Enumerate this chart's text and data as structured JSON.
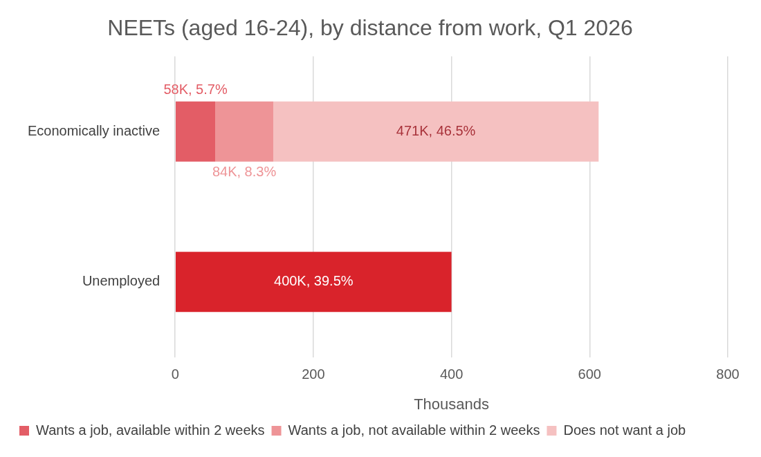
{
  "chart_data": {
    "type": "bar",
    "orientation": "horizontal",
    "stacked": true,
    "title": "NEETs (aged 16-24), by distance from work, Q1 2026",
    "xlabel": "Thousands",
    "categories": [
      "Economically inactive",
      "Unemployed"
    ],
    "series": [
      {
        "color": "#d9232b",
        "values": [
          null,
          400
        ]
      },
      {
        "name": "Wants a job, available within 2 weeks",
        "color": "#e35d66",
        "values": [
          58,
          null
        ]
      },
      {
        "name": "Wants a job, not available within 2 weeks",
        "color": "#ee9497",
        "values": [
          84,
          null
        ]
      },
      {
        "name": "Does not want a job",
        "color": "#f5c1c1",
        "values": [
          471,
          null
        ]
      }
    ],
    "annotations": [
      {
        "text": "58K, 5.7%",
        "x": 58,
        "y": "Economically inactive"
      },
      {
        "text": "84K, 8.3%",
        "x": 142,
        "y": "Economically inactive"
      },
      "471K, 46.5%",
      "400K, 39.5%"
    ],
    "xlim": [
      0,
      800
    ],
    "xticks": [
      0,
      200,
      400,
      600,
      800
    ],
    "grid": "x",
    "legend": "bottom"
  }
}
